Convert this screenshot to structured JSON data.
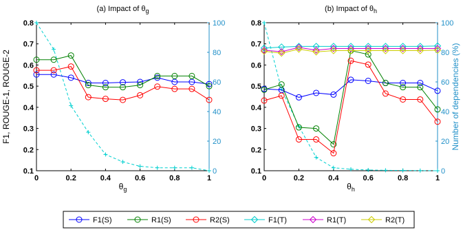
{
  "colors": {
    "F1(S)": "#0000ff",
    "R1(S)": "#008000",
    "R2(S)": "#ff0000",
    "F1(T)": "#00cccc",
    "R1(T)": "#cc00cc",
    "R2(T)": "#cccc00",
    "dep": "#00d0d0",
    "right_axis": "#1f8fc8"
  },
  "legend": {
    "placement": "bottom-center",
    "entries": [
      {
        "key": "F1(S)",
        "label": "F1(S)",
        "marker": "circle"
      },
      {
        "key": "R1(S)",
        "label": "R1(S)",
        "marker": "circle"
      },
      {
        "key": "R2(S)",
        "label": "R2(S)",
        "marker": "circle"
      },
      {
        "key": "F1(T)",
        "label": "F1(T)",
        "marker": "diamond"
      },
      {
        "key": "R1(T)",
        "label": "R1(T)",
        "marker": "diamond"
      },
      {
        "key": "R2(T)",
        "label": "R2(T)",
        "marker": "diamond"
      }
    ]
  },
  "chart_data": [
    {
      "type": "line",
      "title": "(a) Impact of θg",
      "title_parts": {
        "text": "(a) Impact of ",
        "sym": "θ",
        "sub": "g"
      },
      "xlabel": "θg",
      "xlabel_parts": {
        "sym": "θ",
        "sub": "g"
      },
      "ylabel_left": "F1, ROUGE-1, ROUGE-2",
      "ylabel_right": "",
      "xlim": [
        0,
        1
      ],
      "ylim": [
        0.1,
        0.8
      ],
      "ylim_right": [
        0,
        100
      ],
      "xticks": [
        "0",
        "0.2",
        "0.4",
        "0.6",
        "0.8",
        "1"
      ],
      "yticks": [
        "0.1",
        "0.2",
        "0.3",
        "0.4",
        "0.5",
        "0.6",
        "0.7",
        "0.8"
      ],
      "yticks_right": [
        "0",
        "20",
        "40",
        "60",
        "80",
        "100"
      ],
      "x": [
        0,
        0.1,
        0.2,
        0.3,
        0.4,
        0.5,
        0.6,
        0.7,
        0.8,
        0.9,
        1.0
      ],
      "series": [
        {
          "key": "F1(S)",
          "values": [
            0.555,
            0.555,
            0.54,
            0.515,
            0.515,
            0.518,
            0.52,
            0.54,
            0.52,
            0.52,
            0.51
          ]
        },
        {
          "key": "R1(S)",
          "values": [
            0.625,
            0.625,
            0.645,
            0.505,
            0.495,
            0.495,
            0.505,
            0.548,
            0.548,
            0.548,
            0.5
          ]
        },
        {
          "key": "R2(S)",
          "values": [
            0.575,
            0.575,
            0.593,
            0.448,
            0.44,
            0.435,
            0.457,
            0.498,
            0.487,
            0.487,
            0.435
          ]
        }
      ],
      "dependencies": {
        "axis": "right",
        "values": [
          100,
          82,
          44,
          26,
          11,
          6,
          3,
          2,
          2,
          2,
          0
        ]
      }
    },
    {
      "type": "line",
      "title": "(b) Impact of θh",
      "title_parts": {
        "text": "(b) Impact of ",
        "sym": "θ",
        "sub": "h"
      },
      "xlabel": "θh",
      "xlabel_parts": {
        "sym": "θ",
        "sub": "h"
      },
      "ylabel_left": "",
      "ylabel_right": "Number of dependencies (%)",
      "xlim": [
        0,
        1
      ],
      "ylim": [
        0.1,
        0.8
      ],
      "ylim_right": [
        0,
        100
      ],
      "xticks": [
        "0",
        "0.2",
        "0.4",
        "0.6",
        "0.8",
        "1"
      ],
      "yticks": [
        "0.1",
        "0.2",
        "0.3",
        "0.4",
        "0.5",
        "0.6",
        "0.7",
        "0.8"
      ],
      "yticks_right": [
        "0",
        "20",
        "40",
        "60",
        "80",
        "100"
      ],
      "x": [
        0,
        0.1,
        0.2,
        0.3,
        0.4,
        0.5,
        0.6,
        0.7,
        0.8,
        0.9,
        1.0
      ],
      "series": [
        {
          "key": "F1(S)",
          "values": [
            0.487,
            0.482,
            0.447,
            0.468,
            0.46,
            0.53,
            0.525,
            0.515,
            0.515,
            0.515,
            0.478
          ]
        },
        {
          "key": "R1(S)",
          "values": [
            0.483,
            0.508,
            0.305,
            0.3,
            0.225,
            0.668,
            0.65,
            0.515,
            0.495,
            0.495,
            0.39
          ]
        },
        {
          "key": "R2(S)",
          "values": [
            0.432,
            0.455,
            0.248,
            0.248,
            0.183,
            0.62,
            0.602,
            0.465,
            0.437,
            0.437,
            0.332
          ]
        },
        {
          "key": "F1(T)",
          "values": [
            0.68,
            0.685,
            0.688,
            0.688,
            0.688,
            0.688,
            0.688,
            0.688,
            0.688,
            0.688,
            0.69
          ]
        },
        {
          "key": "R1(T)",
          "values": [
            0.67,
            0.663,
            0.683,
            0.67,
            0.678,
            0.678,
            0.678,
            0.678,
            0.678,
            0.678,
            0.678
          ]
        },
        {
          "key": "R2(T)",
          "values": [
            0.665,
            0.656,
            0.675,
            0.662,
            0.668,
            0.668,
            0.668,
            0.668,
            0.668,
            0.668,
            0.67
          ]
        }
      ],
      "dependencies": {
        "axis": "right",
        "values": [
          100,
          55,
          30,
          9,
          2,
          1,
          0.5,
          0.3,
          0.2,
          0.1,
          0
        ]
      }
    }
  ]
}
